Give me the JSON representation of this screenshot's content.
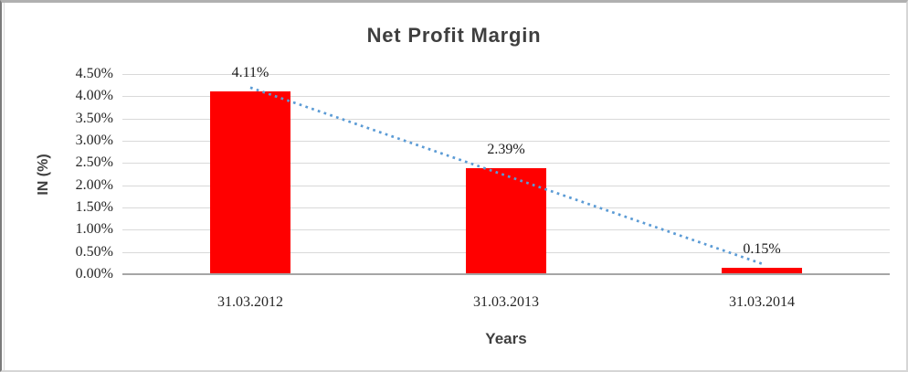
{
  "window": {
    "background": "#FFFFFF"
  },
  "chart_data": {
    "type": "bar",
    "title": "Net Profit Margin",
    "categories": [
      "31.03.2012",
      "31.03.2013",
      "31.03.2014"
    ],
    "series": [
      {
        "name": "Net Profit Margin",
        "values": [
          4.11,
          2.39,
          0.15
        ]
      }
    ],
    "data_labels": [
      "4.11%",
      "2.39%",
      "0.15%"
    ],
    "xlabel": "Years",
    "ylabel": "IN (%)",
    "ylim": [
      0,
      4.5
    ],
    "ytick_labels": [
      "4.50%",
      "4.00%",
      "3.50%",
      "3.00%",
      "2.50%",
      "2.00%",
      "1.50%",
      "1.00%",
      "0.50%",
      "0.00%"
    ],
    "grid": true,
    "legend": "none",
    "trendline": {
      "type": "linear",
      "style": "dotted"
    },
    "colors": {
      "bar": "#FF0000",
      "trendline": "#5B9BD5",
      "gridline": "#D9D9D9",
      "axis_line": "#A6A6A6"
    }
  }
}
